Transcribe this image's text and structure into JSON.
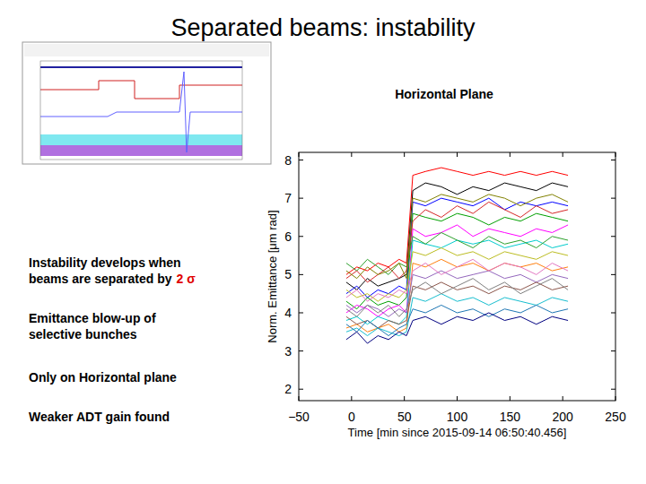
{
  "slide": {
    "title": "Separated beams: instability",
    "panel_label": "Horizontal Plane",
    "bullets": [
      {
        "lines": [
          "Instability develops when",
          "beams are separated by"
        ],
        "emphasis": "2 σ"
      },
      {
        "lines": [
          "Emittance blow-up of",
          "selective bunches"
        ]
      },
      {
        "lines": [
          "Only on Horizontal plane"
        ]
      },
      {
        "lines": [
          "Weaker ADT gain found"
        ]
      }
    ]
  },
  "chart_data": {
    "type": "line",
    "x_label": "Time [min since 2015-09-14 06:50:40.456]",
    "y_label": "Norm. Emittance [μm rad]",
    "xlim": [
      -50,
      250
    ],
    "xticks": [
      {
        "value": -50,
        "label": "−50"
      },
      0,
      50,
      100,
      150,
      200,
      250
    ],
    "ylim": [
      1.7,
      8.2
    ],
    "yticks": [
      2,
      3,
      4,
      5,
      6,
      7,
      8
    ],
    "grid": false,
    "x": [
      -5,
      5,
      15,
      25,
      35,
      45,
      52,
      58,
      70,
      85,
      100,
      115,
      130,
      145,
      160,
      175,
      190,
      205
    ],
    "series": [
      {
        "color": "#ff0000",
        "values": [
          5.0,
          5.2,
          5.1,
          5.3,
          5.2,
          5.4,
          5.3,
          7.6,
          7.7,
          7.8,
          7.7,
          7.6,
          7.7,
          7.6,
          7.7,
          7.6,
          7.7,
          7.6
        ]
      },
      {
        "color": "#000000",
        "values": [
          4.8,
          4.6,
          4.9,
          4.7,
          4.8,
          4.9,
          5.0,
          7.2,
          7.4,
          7.3,
          7.1,
          7.3,
          7.2,
          7.4,
          7.3,
          7.2,
          7.4,
          7.3
        ]
      },
      {
        "color": "#0000ff",
        "values": [
          4.5,
          4.7,
          4.4,
          4.6,
          4.5,
          4.7,
          4.6,
          6.9,
          6.8,
          7.0,
          6.9,
          6.8,
          7.0,
          6.7,
          6.9,
          6.8,
          6.9,
          6.8
        ]
      },
      {
        "color": "#00a000",
        "values": [
          4.3,
          4.1,
          4.4,
          4.2,
          4.3,
          4.2,
          4.4,
          6.6,
          6.5,
          6.4,
          6.6,
          6.5,
          6.3,
          6.5,
          6.4,
          6.6,
          6.5,
          6.4
        ]
      },
      {
        "color": "#ff00ff",
        "values": [
          4.0,
          4.2,
          4.1,
          3.9,
          4.1,
          4.2,
          4.0,
          6.2,
          6.0,
          6.1,
          6.3,
          6.0,
          6.2,
          6.1,
          6.0,
          6.2,
          6.1,
          6.3
        ]
      },
      {
        "color": "#00cccc",
        "values": [
          3.8,
          3.9,
          3.7,
          3.9,
          3.8,
          3.7,
          3.9,
          5.9,
          5.8,
          5.7,
          5.9,
          5.8,
          5.9,
          5.7,
          5.8,
          5.9,
          5.7,
          5.8
        ]
      },
      {
        "color": "#bcbd22",
        "values": [
          4.6,
          4.4,
          4.5,
          4.3,
          4.5,
          4.4,
          4.6,
          5.6,
          5.5,
          5.7,
          5.5,
          5.6,
          5.4,
          5.6,
          5.5,
          5.4,
          5.6,
          5.5
        ]
      },
      {
        "color": "#ff7f0e",
        "values": [
          3.6,
          3.7,
          3.5,
          3.6,
          3.7,
          3.5,
          3.6,
          5.3,
          5.2,
          5.4,
          5.2,
          5.3,
          5.1,
          5.3,
          5.2,
          5.3,
          5.1,
          5.2
        ]
      },
      {
        "color": "#9467bd",
        "values": [
          4.2,
          4.0,
          4.2,
          4.1,
          3.9,
          4.1,
          4.0,
          5.0,
          4.9,
          5.1,
          4.9,
          5.0,
          5.1,
          4.9,
          5.0,
          4.8,
          5.0,
          4.9
        ]
      },
      {
        "color": "#8c564b",
        "values": [
          3.9,
          3.7,
          3.8,
          3.6,
          3.8,
          3.7,
          3.8,
          4.7,
          4.6,
          4.8,
          4.6,
          4.7,
          4.5,
          4.7,
          4.6,
          4.8,
          4.6,
          4.7
        ]
      },
      {
        "color": "#17becf",
        "values": [
          3.5,
          3.6,
          3.4,
          3.6,
          3.5,
          3.4,
          3.5,
          4.4,
          4.3,
          4.5,
          4.3,
          4.4,
          4.2,
          4.4,
          4.3,
          4.2,
          4.4,
          4.3
        ]
      },
      {
        "color": "#2ca02c",
        "values": [
          5.3,
          5.1,
          5.4,
          5.2,
          5.0,
          5.3,
          5.2,
          6.0,
          5.8,
          6.1,
          5.9,
          5.7,
          6.0,
          5.8,
          5.9,
          5.7,
          6.0,
          5.9
        ]
      },
      {
        "color": "#d62728",
        "values": [
          4.9,
          5.1,
          4.8,
          5.0,
          5.2,
          4.9,
          5.1,
          6.4,
          6.7,
          6.5,
          6.8,
          6.6,
          6.9,
          6.7,
          6.5,
          6.8,
          6.6,
          6.7
        ]
      },
      {
        "color": "#1f77b4",
        "values": [
          3.7,
          3.5,
          3.8,
          3.6,
          3.4,
          3.6,
          3.7,
          4.1,
          4.0,
          4.2,
          4.0,
          4.1,
          3.9,
          4.1,
          4.0,
          4.2,
          4.0,
          4.1
        ]
      },
      {
        "color": "#e377c2",
        "values": [
          4.4,
          4.6,
          4.3,
          4.5,
          4.4,
          4.6,
          4.5,
          5.1,
          5.3,
          5.0,
          5.2,
          5.4,
          5.1,
          5.3,
          5.2,
          5.0,
          5.3,
          5.1
        ]
      },
      {
        "color": "#7f7f7f",
        "values": [
          4.1,
          3.9,
          4.2,
          4.0,
          4.2,
          3.9,
          4.1,
          4.6,
          4.8,
          4.5,
          4.7,
          4.9,
          4.6,
          4.8,
          4.5,
          4.7,
          4.9,
          4.6
        ]
      },
      {
        "color": "#000080",
        "values": [
          3.3,
          3.5,
          3.2,
          3.4,
          3.3,
          3.5,
          3.4,
          3.8,
          3.9,
          3.7,
          3.9,
          3.8,
          4.0,
          3.8,
          3.9,
          3.7,
          3.9,
          3.8
        ]
      },
      {
        "color": "#808000",
        "values": [
          5.1,
          4.9,
          5.2,
          5.0,
          5.1,
          5.3,
          4.9,
          7.0,
          6.9,
          7.1,
          7.0,
          6.9,
          7.1,
          7.0,
          6.8,
          7.0,
          7.1,
          6.9
        ]
      }
    ]
  }
}
